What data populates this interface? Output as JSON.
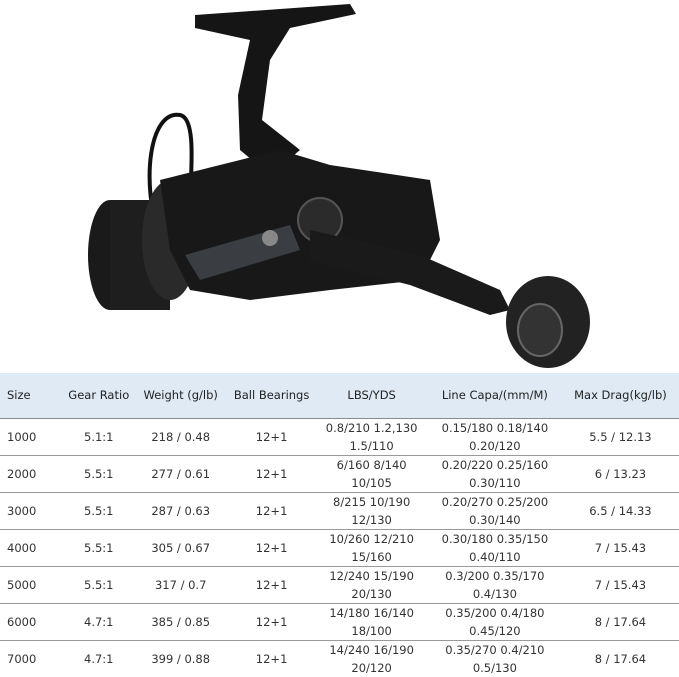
{
  "table": {
    "headers": [
      "Size",
      "Gear Ratio",
      "Weight (g/lb)",
      "Ball Bearings",
      "LBS/YDS",
      "Line Capa/(mm/M)",
      "Max Drag(kg/lb)"
    ],
    "rows": [
      [
        "1000",
        "5.1:1",
        "218 / 0.48",
        "12+1",
        "0.8/210 1.2,130",
        "1.5/110",
        "0.15/180  0.18/140",
        "0.20/120",
        "5.5 / 12.13"
      ],
      [
        "2000",
        "5.5:1",
        "277 / 0.61",
        "12+1",
        "6/160  8/140",
        "10/105",
        "0.20/220  0.25/160",
        "0.30/110",
        "6 / 13.23"
      ],
      [
        "3000",
        "5.5:1",
        "287 / 0.63",
        "12+1",
        "8/215 10/190",
        "12/130",
        "0.20/270  0.25/200",
        "0.30/140",
        "6.5 / 14.33"
      ],
      [
        "4000",
        "5.5:1",
        "305 / 0.67",
        "12+1",
        "10/260 12/210",
        "15/160",
        "0.30/180  0.35/150",
        "0.40/110",
        "7 / 15.43"
      ],
      [
        "5000",
        "5.5:1",
        "317 / 0.7",
        "12+1",
        "12/240 15/190",
        "20/130",
        "0.3/200 0.35/170",
        "0.4/130",
        "7 / 15.43"
      ],
      [
        "6000",
        "4.7:1",
        "385 / 0.85",
        "12+1",
        "14/180 16/140",
        "18/100",
        "0.35/200 0.4/180",
        "0.45/120",
        "8 / 17.64"
      ],
      [
        "7000",
        "4.7:1",
        "399 / 0.88",
        "12+1",
        "14/240 16/190",
        "20/120",
        "0.35/270 0.4/210",
        "0.5/130",
        "8 / 17.64"
      ]
    ]
  },
  "colors": {
    "header_bg": "#dfeaf5",
    "reel": "#141414"
  }
}
